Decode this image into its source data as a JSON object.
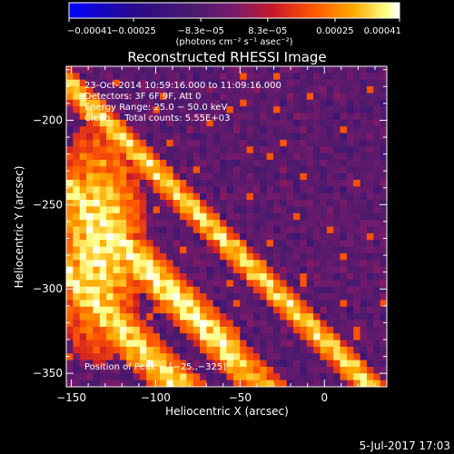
{
  "chart_data": {
    "type": "heatmap",
    "title": "Reconstructed RHESSI Image",
    "xlabel": "Heliocentric X (arcsec)",
    "ylabel": "Heliocentric Y (arcsec)",
    "xlim": [
      -153,
      37
    ],
    "ylim": [
      -358,
      -168
    ],
    "xticks": [
      -150,
      -100,
      -50,
      0
    ],
    "xtick_labels": [
      "−150",
      "−100",
      "−50",
      "0"
    ],
    "yticks": [
      -350,
      -300,
      -250,
      -200
    ],
    "ytick_labels": [
      "−350",
      "−300",
      "−250",
      "−200"
    ],
    "colorbar": {
      "range": [
        -0.00041,
        0.00041
      ],
      "ticks": [
        -0.00041,
        -0.00025,
        -8.3e-05,
        8.3e-05,
        0.00025,
        0.00041
      ],
      "tick_labels": [
        "−0.00041",
        "−0.00025",
        "−8.3e−05",
        "8.3e−05",
        "0.00025",
        "0.00041"
      ],
      "units_label": "(photons cm⁻² s⁻¹ asec⁻²)",
      "colormap_stops": [
        "#0000ff",
        "#2a0a88",
        "#4a1a6e",
        "#7a1a6a",
        "#c81a2a",
        "#ff5500",
        "#ffaa00",
        "#ffff88",
        "#ffffff"
      ]
    },
    "annotations": {
      "time_range": "23-Oct-2014 10:59:16.000 to 11:09:16.000",
      "detectors": "Detectors: 3F 6F 9F, Att 0",
      "energy_range": "Energy Range: 25.0 − 50.0 keV",
      "clean_counts": "Clean     Total counts: 5.55E+03",
      "peak": "Position of Peak = [−25.,−325]"
    },
    "peak_position": [
      -25,
      -325
    ],
    "total_counts": 5550,
    "energy_range_keV": [
      25.0,
      50.0
    ],
    "date_stamp": "5-Jul-2017 17:03"
  }
}
